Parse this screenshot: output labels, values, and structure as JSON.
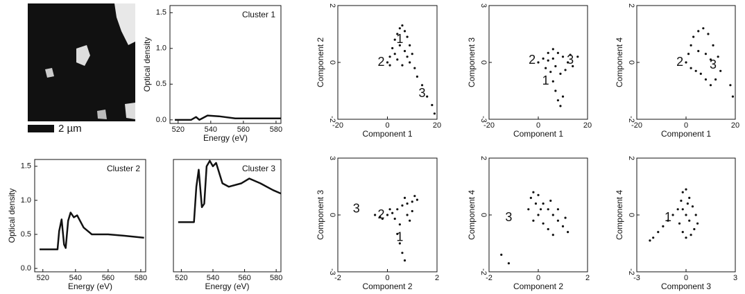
{
  "micrograph": {
    "scale_label": "2 µm"
  },
  "chart_data": [
    {
      "type": "line",
      "title": "Cluster 1",
      "xlabel": "Energy (eV)",
      "ylabel": "Optical density",
      "xlim": [
        515,
        583
      ],
      "ylim": [
        -0.05,
        1.6
      ],
      "xticks": [
        520,
        540,
        560,
        580
      ],
      "yticks": [
        {
          "value": 0,
          "label": "0.0"
        },
        {
          "value": 0.5,
          "label": "0.5"
        },
        {
          "value": 1,
          "label": "1.0"
        },
        {
          "value": 1.5,
          "label": "1.5"
        }
      ],
      "color": "#111111",
      "x": [
        518,
        528,
        531,
        533,
        538,
        545,
        555,
        583
      ],
      "values": [
        0,
        0,
        0.04,
        0,
        0.06,
        0.05,
        0.02,
        0.02
      ]
    },
    {
      "type": "line",
      "title": "Cluster 2",
      "xlabel": "Energy (eV)",
      "ylabel": "Optical density",
      "xlim": [
        515,
        583
      ],
      "ylim": [
        -0.05,
        1.6
      ],
      "xticks": [
        520,
        540,
        560,
        580
      ],
      "yticks": [
        {
          "value": 0,
          "label": "0.0"
        },
        {
          "value": 0.5,
          "label": "0.5"
        },
        {
          "value": 1,
          "label": "1.0"
        },
        {
          "value": 1.5,
          "label": "1.5"
        }
      ],
      "color": "#111111",
      "x": [
        518,
        529,
        530,
        531.5,
        533,
        534,
        535.5,
        537,
        539,
        541,
        545,
        550,
        560,
        570,
        582
      ],
      "values": [
        0.28,
        0.28,
        0.55,
        0.72,
        0.35,
        0.3,
        0.7,
        0.82,
        0.75,
        0.78,
        0.6,
        0.5,
        0.5,
        0.48,
        0.45
      ]
    },
    {
      "type": "line",
      "title": "Cluster 3",
      "xlabel": "Energy (eV)",
      "xlim": [
        515,
        583
      ],
      "ylim": [
        -0.05,
        1.6
      ],
      "xticks": [
        520,
        540,
        560,
        580
      ],
      "color": "#111111",
      "x": [
        518,
        528,
        529.5,
        531,
        533,
        534.5,
        536,
        538,
        540,
        542,
        546,
        550,
        558,
        563,
        570,
        578,
        583
      ],
      "values": [
        0.68,
        0.68,
        1.2,
        1.45,
        0.9,
        0.95,
        1.5,
        1.58,
        1.5,
        1.55,
        1.25,
        1.2,
        1.25,
        1.32,
        1.25,
        1.15,
        1.1
      ]
    },
    {
      "type": "scatter",
      "xlabel": "Component 1",
      "ylabel": "Component 2",
      "xlim": [
        -20,
        20
      ],
      "ylim": [
        -2,
        2
      ],
      "xticks": [
        -20,
        0,
        20
      ],
      "yticks": [
        -2,
        0,
        2
      ],
      "color": "#111111",
      "x": [
        0,
        1,
        2,
        3,
        4,
        5,
        6,
        7,
        8,
        9,
        10,
        3,
        5,
        7,
        6,
        9,
        11,
        12,
        14,
        16,
        18,
        19,
        1,
        4,
        8
      ],
      "values": [
        0,
        0.2,
        0.5,
        0.8,
        1.0,
        1.2,
        1.3,
        1.1,
        0.9,
        0.6,
        0.3,
        0.3,
        0.6,
        0.4,
        -0.1,
        0.0,
        -0.2,
        -0.5,
        -0.8,
        -1.2,
        -1.5,
        -1.8,
        -0.1,
        0.1,
        0.2
      ],
      "annotations": [
        {
          "text": "2",
          "x": -2.5,
          "y": 0
        },
        {
          "text": "1",
          "x": 5,
          "y": 0.8
        },
        {
          "text": "3",
          "x": 14,
          "y": -1.1
        }
      ]
    },
    {
      "type": "scatter",
      "xlabel": "Component 1",
      "ylabel": "Component 3",
      "xlim": [
        -20,
        20
      ],
      "ylim": [
        -3,
        3
      ],
      "xticks": [
        -20,
        0,
        20
      ],
      "yticks": [
        -3,
        0,
        3
      ],
      "color": "#111111",
      "x": [
        0,
        2,
        4,
        6,
        8,
        10,
        12,
        14,
        3,
        5,
        7,
        9,
        6,
        7,
        8,
        9,
        10,
        4,
        6,
        11,
        13,
        16
      ],
      "values": [
        0,
        0.2,
        0.5,
        0.7,
        0.5,
        0.3,
        0.0,
        -0.2,
        -0.3,
        -0.5,
        -0.2,
        -0.6,
        -1.0,
        -1.5,
        -2.0,
        -2.3,
        -1.8,
        0.1,
        0.2,
        -0.4,
        0.4,
        0.3
      ],
      "annotations": [
        {
          "text": "2",
          "x": -2.5,
          "y": 0.1
        },
        {
          "text": "3",
          "x": 13,
          "y": 0.1
        },
        {
          "text": "1",
          "x": 3,
          "y": -1.0
        }
      ]
    },
    {
      "type": "scatter",
      "xlabel": "Component 1",
      "ylabel": "Component 4",
      "xlim": [
        -20,
        20
      ],
      "ylim": [
        -2,
        2
      ],
      "xticks": [
        -20,
        0,
        20
      ],
      "yticks": [
        -2,
        0,
        2
      ],
      "color": "#111111",
      "x": [
        0,
        1,
        2,
        3,
        5,
        7,
        9,
        11,
        13,
        14,
        12,
        10,
        8,
        6,
        4,
        2,
        5,
        8,
        10,
        18,
        19
      ],
      "values": [
        0,
        0.3,
        0.6,
        0.9,
        1.1,
        1.2,
        1.0,
        0.6,
        0.2,
        -0.3,
        -0.6,
        -0.8,
        -0.6,
        -0.4,
        -0.3,
        -0.2,
        0.4,
        0.3,
        0.1,
        -0.8,
        -1.2
      ],
      "annotations": [
        {
          "text": "2",
          "x": -2.5,
          "y": 0
        },
        {
          "text": "3",
          "x": 11,
          "y": -0.1
        }
      ]
    },
    {
      "type": "scatter",
      "xlabel": "Component 2",
      "ylabel": "Component 3",
      "xlim": [
        -2,
        2
      ],
      "ylim": [
        -3,
        3
      ],
      "xticks": [
        -2,
        0,
        2
      ],
      "yticks": [
        -3,
        0,
        3
      ],
      "color": "#111111",
      "x": [
        -0.5,
        -0.3,
        0,
        0.2,
        0.4,
        0.6,
        0.8,
        1.0,
        1.2,
        0.3,
        0.5,
        0.4,
        0.5,
        0.6,
        0.7,
        0.8,
        1.0,
        0.1,
        -0.2,
        0.9,
        0.7,
        1.1
      ],
      "values": [
        0,
        -0.1,
        0,
        0.1,
        0.3,
        0.5,
        0.6,
        0.7,
        0.8,
        -0.2,
        -0.5,
        -1.0,
        -1.5,
        -2.0,
        -2.4,
        0.0,
        0.2,
        0.3,
        -0.2,
        -0.3,
        0.9,
        1.0
      ],
      "annotations": [
        {
          "text": "3",
          "x": -1.25,
          "y": 0.3
        },
        {
          "text": "2",
          "x": -0.25,
          "y": 0
        },
        {
          "text": "1",
          "x": 0.5,
          "y": -1.2
        }
      ]
    },
    {
      "type": "scatter",
      "xlabel": "Component 2",
      "ylabel": "Component 4",
      "xlim": [
        -2,
        2
      ],
      "ylim": [
        -2,
        2
      ],
      "xticks": [
        -2,
        0,
        2
      ],
      "yticks": [
        -2,
        0,
        2
      ],
      "color": "#111111",
      "x": [
        -0.4,
        -0.3,
        -0.2,
        0,
        0.2,
        0.4,
        0.6,
        0.8,
        1.0,
        1.2,
        0,
        0.2,
        0.4,
        0.6,
        -0.2,
        0.1,
        0.8,
        1.1,
        -0.1,
        0.5,
        -1.5,
        -1.2
      ],
      "values": [
        0.2,
        0.6,
        0.8,
        0.7,
        0.4,
        0.2,
        0,
        -0.2,
        -0.4,
        -0.6,
        0,
        -0.3,
        -0.5,
        -0.7,
        -0.2,
        0.2,
        0.2,
        -0.1,
        0.4,
        0.5,
        -1.4,
        -1.7
      ],
      "annotations": [
        {
          "text": "3",
          "x": -1.2,
          "y": -0.1
        }
      ]
    },
    {
      "type": "scatter",
      "xlabel": "Component 3",
      "ylabel": "Component 4",
      "xlim": [
        -3,
        3
      ],
      "ylim": [
        -2,
        2
      ],
      "xticks": [
        -3,
        0,
        3
      ],
      "yticks": [
        -2,
        0,
        2
      ],
      "color": "#111111",
      "x": [
        -2,
        -1.7,
        -1.4,
        -1.1,
        -0.8,
        -0.5,
        -0.3,
        -0.2,
        0,
        0.2,
        0.4,
        0.6,
        0.7,
        0.5,
        0.3,
        0,
        -0.2,
        -0.4,
        0,
        0.2,
        -0.2,
        -2.2,
        0.1
      ],
      "values": [
        -0.8,
        -0.6,
        -0.4,
        -0.2,
        0,
        0.2,
        0.5,
        0.8,
        0.9,
        0.6,
        0.3,
        0,
        -0.3,
        -0.5,
        -0.7,
        -0.8,
        -0.6,
        -0.3,
        0,
        -0.2,
        0.2,
        -0.9,
        0.4
      ],
      "annotations": [
        {
          "text": "1",
          "x": -1.1,
          "y": -0.1
        }
      ]
    }
  ]
}
